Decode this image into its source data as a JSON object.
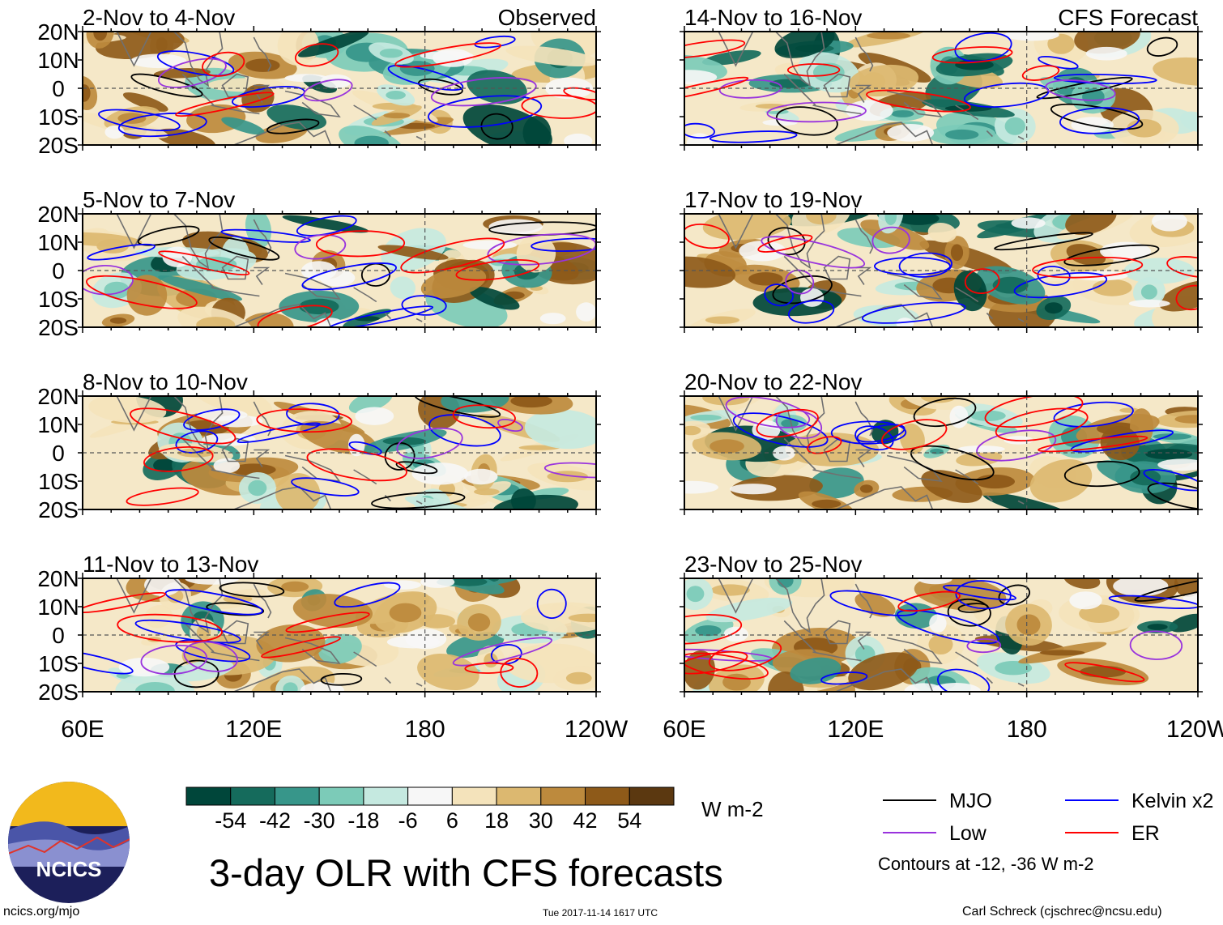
{
  "chart_data": {
    "type": "heatmap",
    "title": "3-day OLR with CFS forecasts",
    "units": "W m-2",
    "lat_labels": [
      "20N",
      "10N",
      "0",
      "10S",
      "20S"
    ],
    "lat_values": [
      20,
      10,
      0,
      -10,
      -20
    ],
    "lon_labels": [
      "60E",
      "120E",
      "180",
      "120W"
    ],
    "lon_values": [
      60,
      120,
      180,
      240
    ],
    "xlim": [
      60,
      240
    ],
    "ylim": [
      -20,
      20
    ],
    "observed_label": "Observed",
    "forecast_label": "CFS Forecast",
    "panels": [
      {
        "period": "2-Nov to 4-Nov",
        "kind": "observed"
      },
      {
        "period": "5-Nov to 7-Nov",
        "kind": "observed"
      },
      {
        "period": "8-Nov to 10-Nov",
        "kind": "observed"
      },
      {
        "period": "11-Nov to 13-Nov",
        "kind": "observed"
      },
      {
        "period": "14-Nov to 16-Nov",
        "kind": "forecast"
      },
      {
        "period": "17-Nov to 19-Nov",
        "kind": "forecast"
      },
      {
        "period": "20-Nov to 22-Nov",
        "kind": "forecast"
      },
      {
        "period": "23-Nov to 25-Nov",
        "kind": "forecast"
      }
    ],
    "colorbar": {
      "labels": [
        "-54",
        "-42",
        "-30",
        "-18",
        "-6",
        "6",
        "18",
        "30",
        "42",
        "54"
      ],
      "colors": [
        "#00463a",
        "#156b5c",
        "#37968a",
        "#7ccbb8",
        "#c5e9e0",
        "#f7f7f7",
        "#f4e3bb",
        "#dcb870",
        "#bd8a3d",
        "#8e5a19",
        "#5b3810"
      ]
    },
    "legend": {
      "items": [
        {
          "label": "MJO",
          "color": "#000000"
        },
        {
          "label": "Kelvin x2",
          "color": "#0000ff"
        },
        {
          "label": "Low",
          "color": "#9933dd"
        },
        {
          "label": "ER",
          "color": "#ff0000"
        }
      ],
      "note": "Contours at -12, -36 W m-2"
    }
  },
  "footer": {
    "logo_text": "NCICS",
    "site": "ncics.org/mjo",
    "timestamp": "Tue 2017-11-14 1617 UTC",
    "credit": "Carl Schreck (cjschrec@ncsu.edu)"
  }
}
